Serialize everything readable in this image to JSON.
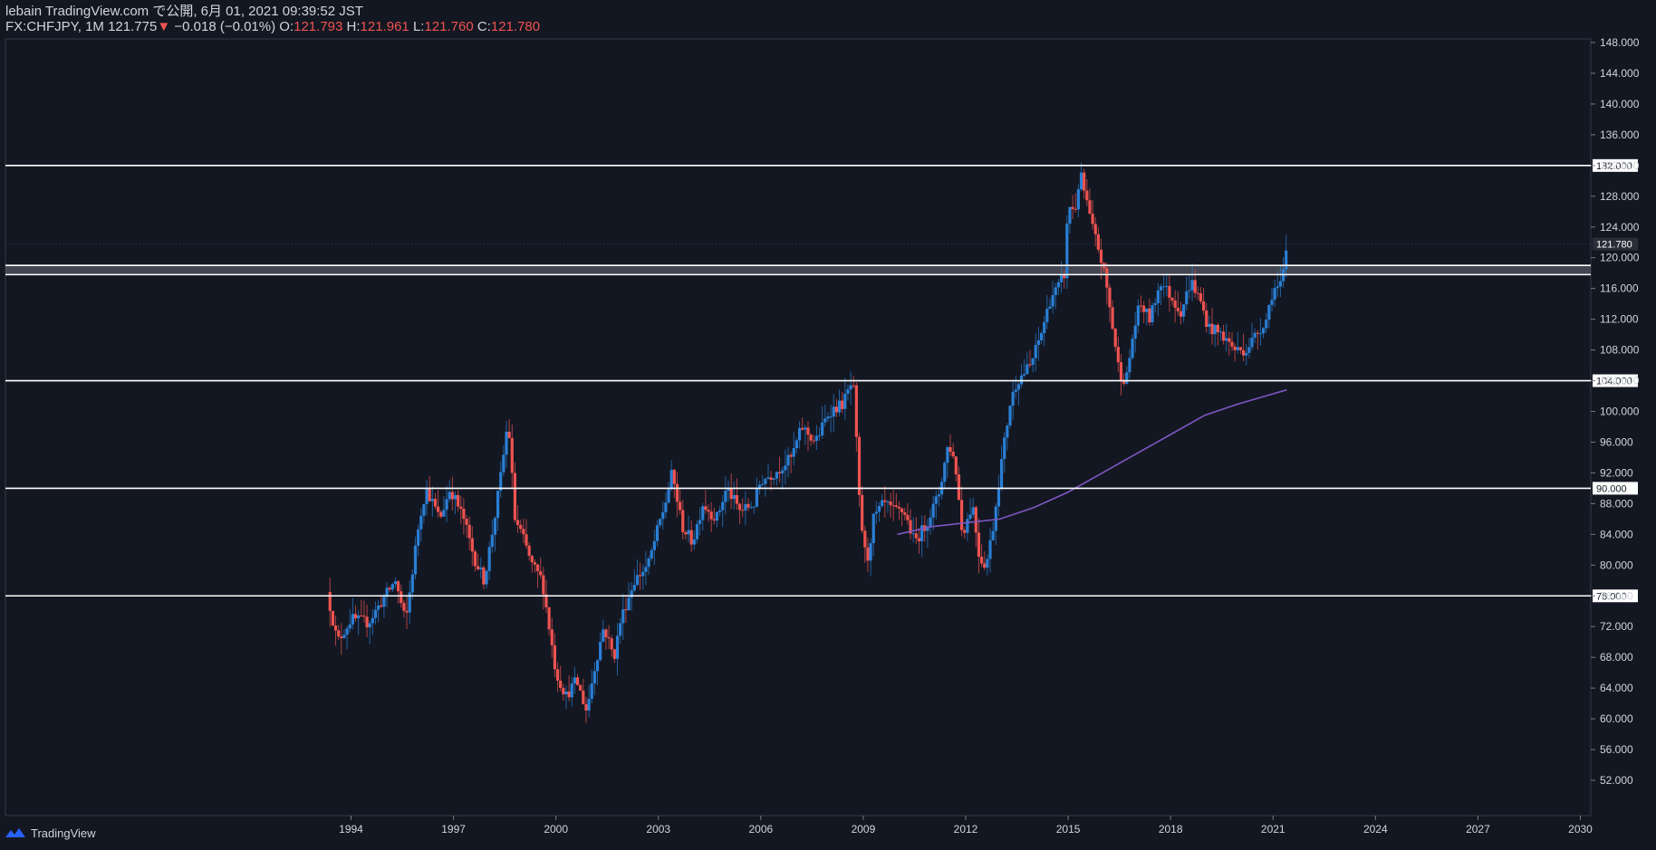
{
  "header": {
    "line1": "lebain TradingView.com で公開, 6月 01, 2021 09:39:52 JST",
    "symbol": "FX:CHFJPY, 1M",
    "last": "121.775",
    "change": "−0.018 (−0.01%)",
    "o_label": "O:",
    "o": "121.793",
    "h_label": "H:",
    "h": "121.961",
    "l_label": "L:",
    "l": "121.760",
    "c_label": "C:",
    "c": "121.780"
  },
  "footer": {
    "brand": "TradingView"
  },
  "colors": {
    "background": "#131722",
    "up": "#2a7fd4",
    "down": "#ef5350",
    "ma": "#7e57c2",
    "level_line": "#ffffff",
    "text": "#d1d4dc"
  },
  "chart_data": {
    "type": "candlestick",
    "symbol": "FX:CHFJPY",
    "timeframe": "1M",
    "xlim": [
      1993.0,
      2030.0
    ],
    "ylim": [
      51.0,
      149.0
    ],
    "x_ticks": [
      "1994",
      "1997",
      "2000",
      "2003",
      "2006",
      "2009",
      "2012",
      "2015",
      "2018",
      "2021",
      "2024",
      "2027",
      "2030"
    ],
    "y_ticks": [
      "52.000",
      "56.000",
      "60.000",
      "64.000",
      "68.000",
      "72.000",
      "76.000",
      "80.000",
      "84.000",
      "88.000",
      "92.000",
      "96.000",
      "100.000",
      "104.000",
      "108.000",
      "112.000",
      "116.000",
      "120.000",
      "124.000",
      "128.000",
      "132.000",
      "136.000",
      "140.000",
      "144.000",
      "148.000"
    ],
    "price_keypoints": [
      [
        1993.3,
        76.5
      ],
      [
        1993.6,
        70
      ],
      [
        1994.0,
        73
      ],
      [
        1994.5,
        72.5
      ],
      [
        1995.0,
        76
      ],
      [
        1995.3,
        78
      ],
      [
        1995.6,
        72.5
      ],
      [
        1996.0,
        86
      ],
      [
        1996.2,
        90
      ],
      [
        1996.6,
        86
      ],
      [
        1996.9,
        90
      ],
      [
        1997.3,
        86
      ],
      [
        1997.6,
        81
      ],
      [
        1997.9,
        78
      ],
      [
        1998.2,
        86
      ],
      [
        1998.4,
        92
      ],
      [
        1998.6,
        99
      ],
      [
        1998.8,
        86
      ],
      [
        1999.0,
        84
      ],
      [
        1999.3,
        80
      ],
      [
        1999.6,
        78
      ],
      [
        1999.8,
        72
      ],
      [
        2000.0,
        66
      ],
      [
        2000.3,
        63
      ],
      [
        2000.6,
        65
      ],
      [
        2000.9,
        61
      ],
      [
        2001.1,
        66
      ],
      [
        2001.4,
        72
      ],
      [
        2001.7,
        68
      ],
      [
        2001.9,
        73
      ],
      [
        2002.3,
        78
      ],
      [
        2002.7,
        80
      ],
      [
        2003.0,
        85
      ],
      [
        2003.2,
        88
      ],
      [
        2003.4,
        92
      ],
      [
        2003.7,
        85
      ],
      [
        2004.0,
        83
      ],
      [
        2004.3,
        88
      ],
      [
        2004.7,
        86
      ],
      [
        2005.0,
        90
      ],
      [
        2005.4,
        87
      ],
      [
        2005.8,
        88
      ],
      [
        2006.0,
        91
      ],
      [
        2006.4,
        92
      ],
      [
        2006.9,
        94
      ],
      [
        2007.2,
        98
      ],
      [
        2007.6,
        96
      ],
      [
        2008.0,
        100
      ],
      [
        2008.4,
        101
      ],
      [
        2008.7,
        104
      ],
      [
        2008.8,
        96
      ],
      [
        2008.9,
        87
      ],
      [
        2009.1,
        80
      ],
      [
        2009.3,
        86
      ],
      [
        2009.6,
        88
      ],
      [
        2009.9,
        87
      ],
      [
        2010.2,
        87
      ],
      [
        2010.5,
        83
      ],
      [
        2010.8,
        85
      ],
      [
        2011.2,
        89
      ],
      [
        2011.5,
        96
      ],
      [
        2011.7,
        93
      ],
      [
        2011.9,
        84
      ],
      [
        2012.2,
        88
      ],
      [
        2012.4,
        81
      ],
      [
        2012.6,
        80
      ],
      [
        2012.8,
        85
      ],
      [
        2013.0,
        92
      ],
      [
        2013.3,
        101
      ],
      [
        2013.5,
        104
      ],
      [
        2013.9,
        106
      ],
      [
        2014.2,
        110
      ],
      [
        2014.5,
        115
      ],
      [
        2014.7,
        116
      ],
      [
        2014.9,
        118
      ],
      [
        2015.0,
        127
      ],
      [
        2015.2,
        126
      ],
      [
        2015.35,
        131
      ],
      [
        2015.5,
        128
      ],
      [
        2015.7,
        124
      ],
      [
        2015.9,
        121
      ],
      [
        2016.1,
        117
      ],
      [
        2016.3,
        111
      ],
      [
        2016.5,
        105
      ],
      [
        2016.7,
        104
      ],
      [
        2016.9,
        110
      ],
      [
        2017.1,
        114
      ],
      [
        2017.4,
        112
      ],
      [
        2017.7,
        117
      ],
      [
        2018.0,
        115
      ],
      [
        2018.3,
        113
      ],
      [
        2018.6,
        117
      ],
      [
        2018.9,
        114
      ],
      [
        2019.1,
        111
      ],
      [
        2019.5,
        110
      ],
      [
        2019.9,
        108
      ],
      [
        2020.2,
        108
      ],
      [
        2020.5,
        110
      ],
      [
        2020.8,
        112
      ],
      [
        2021.0,
        116
      ],
      [
        2021.2,
        116
      ],
      [
        2021.3,
        118
      ],
      [
        2021.42,
        121.78
      ]
    ],
    "ma_curve": [
      [
        2010.0,
        84
      ],
      [
        2011.0,
        85
      ],
      [
        2012.0,
        85.5
      ],
      [
        2013.0,
        86
      ],
      [
        2014.0,
        87.5
      ],
      [
        2015.0,
        89.5
      ],
      [
        2016.0,
        92
      ],
      [
        2017.0,
        94.5
      ],
      [
        2018.0,
        97
      ],
      [
        2019.0,
        99.5
      ],
      [
        2020.0,
        101
      ],
      [
        2021.4,
        102.8
      ]
    ],
    "levels": [
      {
        "value": 132,
        "label": "132.000"
      },
      {
        "value": 119,
        "label": ""
      },
      {
        "value": 117.8,
        "label": ""
      },
      {
        "value": 104,
        "label": "104.000"
      },
      {
        "value": 90,
        "label": "90.000"
      },
      {
        "value": 76,
        "label": "76.000"
      }
    ],
    "zone": {
      "from": 117.8,
      "to": 119
    },
    "last_price": {
      "value": 121.78,
      "label": "121.780"
    }
  }
}
